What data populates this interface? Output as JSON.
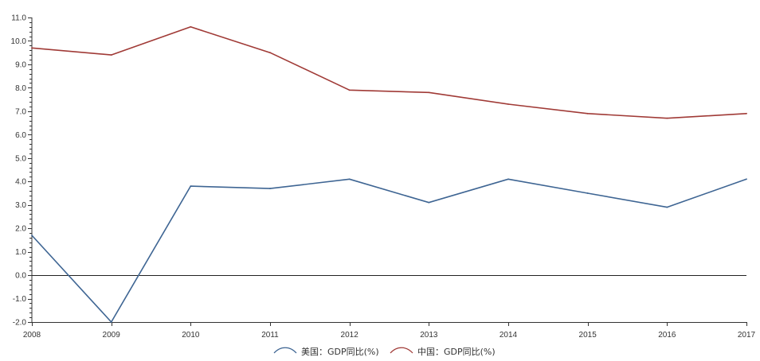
{
  "chart_data": {
    "type": "line",
    "title": "",
    "xlabel": "",
    "ylabel": "",
    "categories": [
      "2008",
      "2009",
      "2010",
      "2011",
      "2012",
      "2013",
      "2014",
      "2015",
      "2016",
      "2017"
    ],
    "yticks": [
      "-2.0",
      "-1.0",
      "0.0",
      "1.0",
      "2.0",
      "3.0",
      "4.0",
      "5.0",
      "6.0",
      "7.0",
      "8.0",
      "9.0",
      "10.0",
      "11.0"
    ],
    "ylim": [
      -2.0,
      11.0
    ],
    "grid": false,
    "legend_position": "bottom-center",
    "series": [
      {
        "name": "美国：GDP同比(%)",
        "color": "#3e6593",
        "values": [
          1.7,
          -2.0,
          3.8,
          3.7,
          4.1,
          3.1,
          4.1,
          3.5,
          2.9,
          4.1
        ]
      },
      {
        "name": "中国：GDP同比(%)",
        "color": "#a03a36",
        "values": [
          9.7,
          9.4,
          10.6,
          9.5,
          7.9,
          7.8,
          7.3,
          6.9,
          6.7,
          6.9
        ]
      }
    ]
  }
}
